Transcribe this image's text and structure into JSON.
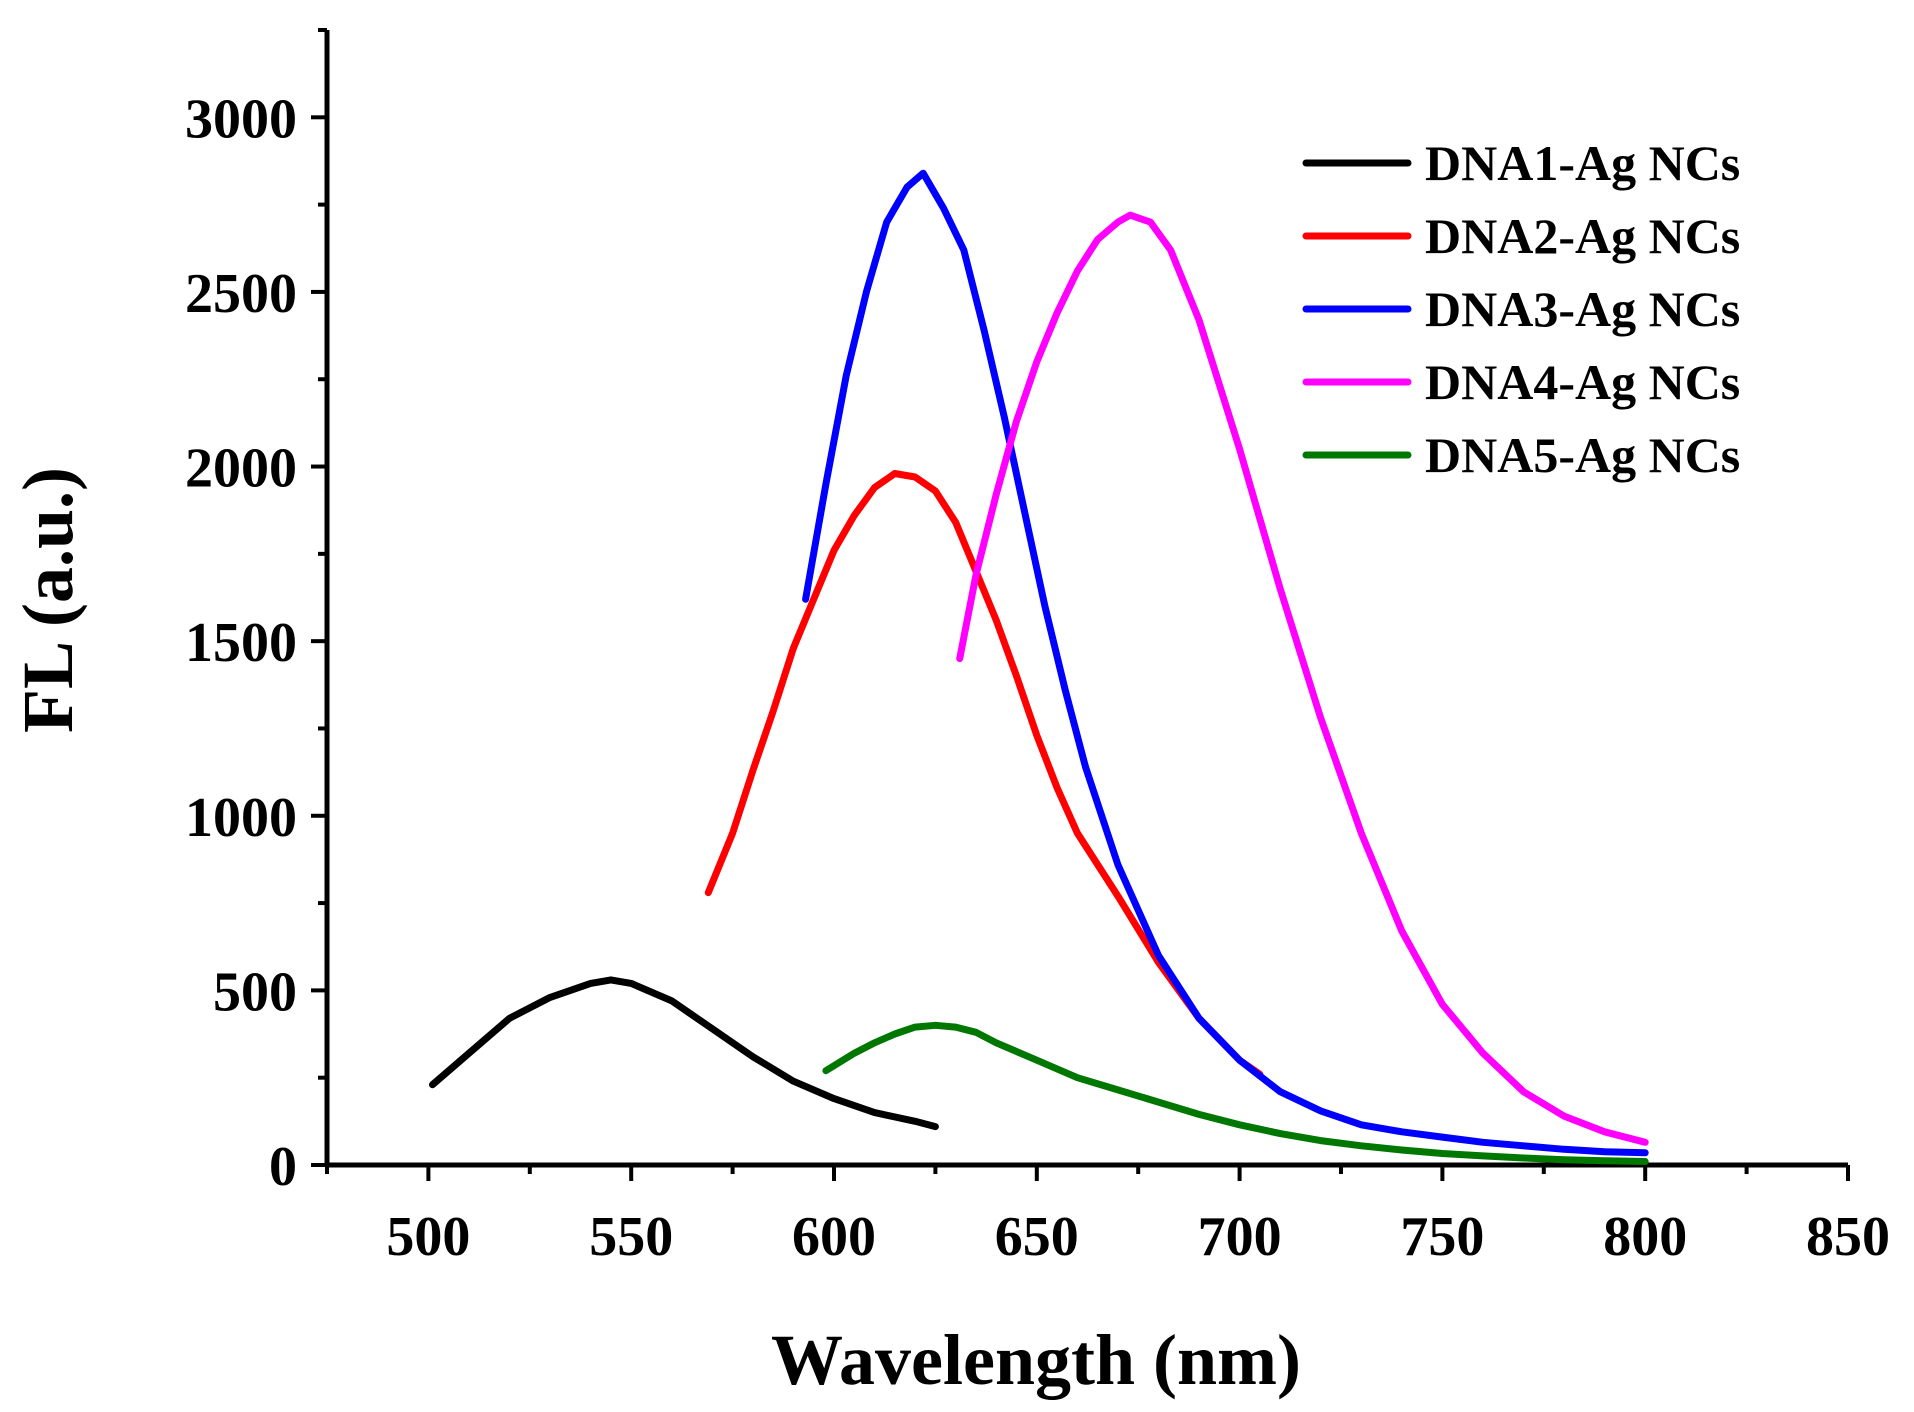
{
  "chart_data": {
    "type": "line",
    "title": "",
    "xlabel": "Wavelength (nm)",
    "ylabel": "FL (a.u.)",
    "xlim": [
      475,
      850
    ],
    "ylim": [
      0,
      3250
    ],
    "xticks": [
      500,
      550,
      600,
      650,
      700,
      750,
      800,
      850
    ],
    "yticks": [
      0,
      500,
      1000,
      1500,
      2000,
      2500,
      3000
    ],
    "grid": false,
    "legend_position": "top-right",
    "series": [
      {
        "name": "DNA1-Ag NCs",
        "color": "#000000",
        "x": [
          501,
          510,
          520,
          530,
          540,
          545,
          550,
          560,
          570,
          580,
          590,
          600,
          610,
          620,
          625
        ],
        "y": [
          230,
          320,
          420,
          480,
          520,
          530,
          520,
          470,
          390,
          310,
          240,
          190,
          150,
          125,
          110
        ]
      },
      {
        "name": "DNA2-Ag NCs",
        "color": "#ff0000",
        "x": [
          569,
          575,
          580,
          585,
          590,
          595,
          600,
          605,
          610,
          615,
          620,
          625,
          630,
          635,
          640,
          645,
          650,
          655,
          660,
          670,
          680,
          690,
          700,
          705
        ],
        "y": [
          780,
          950,
          1130,
          1300,
          1480,
          1620,
          1760,
          1860,
          1940,
          1980,
          1970,
          1930,
          1840,
          1700,
          1560,
          1400,
          1230,
          1080,
          950,
          770,
          580,
          420,
          300,
          260
        ]
      },
      {
        "name": "DNA3-Ag NCs",
        "color": "#0000ff",
        "x": [
          593,
          598,
          603,
          608,
          613,
          618,
          622,
          627,
          632,
          637,
          642,
          647,
          652,
          657,
          662,
          670,
          680,
          690,
          700,
          710,
          720,
          730,
          740,
          750,
          760,
          770,
          780,
          790,
          800
        ],
        "y": [
          1620,
          1950,
          2260,
          2500,
          2700,
          2800,
          2840,
          2740,
          2620,
          2390,
          2140,
          1870,
          1600,
          1360,
          1140,
          860,
          600,
          420,
          300,
          210,
          155,
          115,
          95,
          80,
          65,
          55,
          45,
          38,
          35
        ]
      },
      {
        "name": "DNA4-Ag NCs",
        "color": "#ff00ff",
        "x": [
          631,
          635,
          640,
          645,
          650,
          655,
          660,
          665,
          670,
          673,
          678,
          683,
          690,
          700,
          710,
          720,
          730,
          740,
          750,
          760,
          770,
          780,
          790,
          800
        ],
        "y": [
          1450,
          1690,
          1920,
          2130,
          2300,
          2440,
          2560,
          2650,
          2700,
          2720,
          2700,
          2620,
          2420,
          2050,
          1650,
          1280,
          950,
          670,
          460,
          320,
          210,
          140,
          95,
          65
        ]
      },
      {
        "name": "DNA5-Ag NCs",
        "color": "#007700",
        "x": [
          598,
          605,
          610,
          615,
          620,
          625,
          630,
          635,
          640,
          650,
          660,
          670,
          680,
          690,
          700,
          710,
          720,
          730,
          740,
          750,
          760,
          770,
          780,
          790,
          800
        ],
        "y": [
          270,
          320,
          350,
          375,
          395,
          400,
          395,
          380,
          350,
          300,
          250,
          215,
          180,
          145,
          115,
          90,
          70,
          55,
          43,
          33,
          26,
          20,
          15,
          12,
          10
        ]
      }
    ]
  }
}
